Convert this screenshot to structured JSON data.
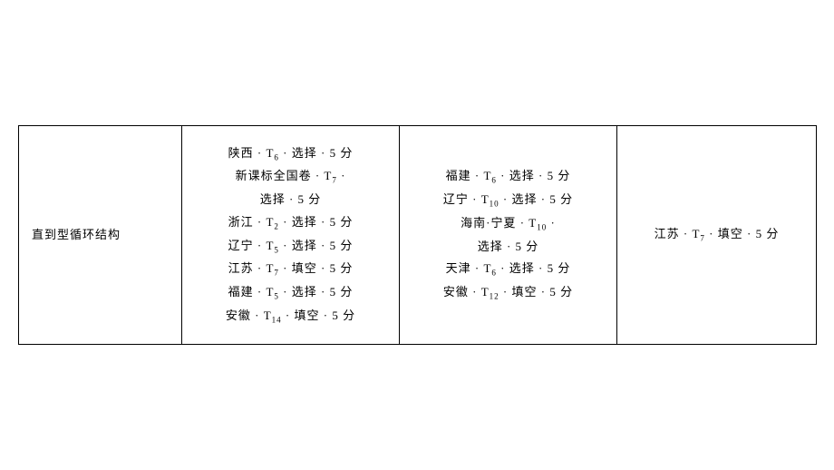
{
  "table": {
    "border_color": "#000000",
    "background_color": "#ffffff",
    "text_color": "#000000",
    "font_size_pt": 13,
    "row": {
      "col1": {
        "label": "直到型循环结构"
      },
      "col2": {
        "entries": [
          {
            "region": "陕西",
            "t_label": "T",
            "t_sub": "6",
            "type": "选择",
            "points": "5 分"
          },
          {
            "region": "新课标全国卷",
            "t_label": "T",
            "t_sub": "7",
            "type": "选择",
            "points": "5 分",
            "wrap": true
          },
          {
            "region": "浙江",
            "t_label": "T",
            "t_sub": "2",
            "type": "选择",
            "points": "5 分"
          },
          {
            "region": "辽宁",
            "t_label": "T",
            "t_sub": "5",
            "type": "选择",
            "points": "5 分"
          },
          {
            "region": "江苏",
            "t_label": "T",
            "t_sub": "7",
            "type": "填空",
            "points": "5 分"
          },
          {
            "region": "福建",
            "t_label": "T",
            "t_sub": "5",
            "type": "选择",
            "points": "5 分"
          },
          {
            "region": "安徽",
            "t_label": "T",
            "t_sub": "14",
            "type": "填空",
            "points": "5 分"
          }
        ]
      },
      "col3": {
        "entries": [
          {
            "region": "福建",
            "t_label": "T",
            "t_sub": "6",
            "type": "选择",
            "points": "5 分"
          },
          {
            "region": "辽宁",
            "t_label": "T",
            "t_sub": "10",
            "type": "选择",
            "points": "5 分"
          },
          {
            "region": "海南·宁夏",
            "t_label": "T",
            "t_sub": "10",
            "type": "选择",
            "points": "5 分",
            "wrap": true
          },
          {
            "region": "天津",
            "t_label": "T",
            "t_sub": "6",
            "type": "选择",
            "points": "5 分"
          },
          {
            "region": "安徽",
            "t_label": "T",
            "t_sub": "12",
            "type": "填空",
            "points": "5 分"
          }
        ]
      },
      "col4": {
        "entries": [
          {
            "region": "江苏",
            "t_label": "T",
            "t_sub": "7",
            "type": "填空",
            "points": "5 分"
          }
        ]
      }
    }
  },
  "separator": "·"
}
